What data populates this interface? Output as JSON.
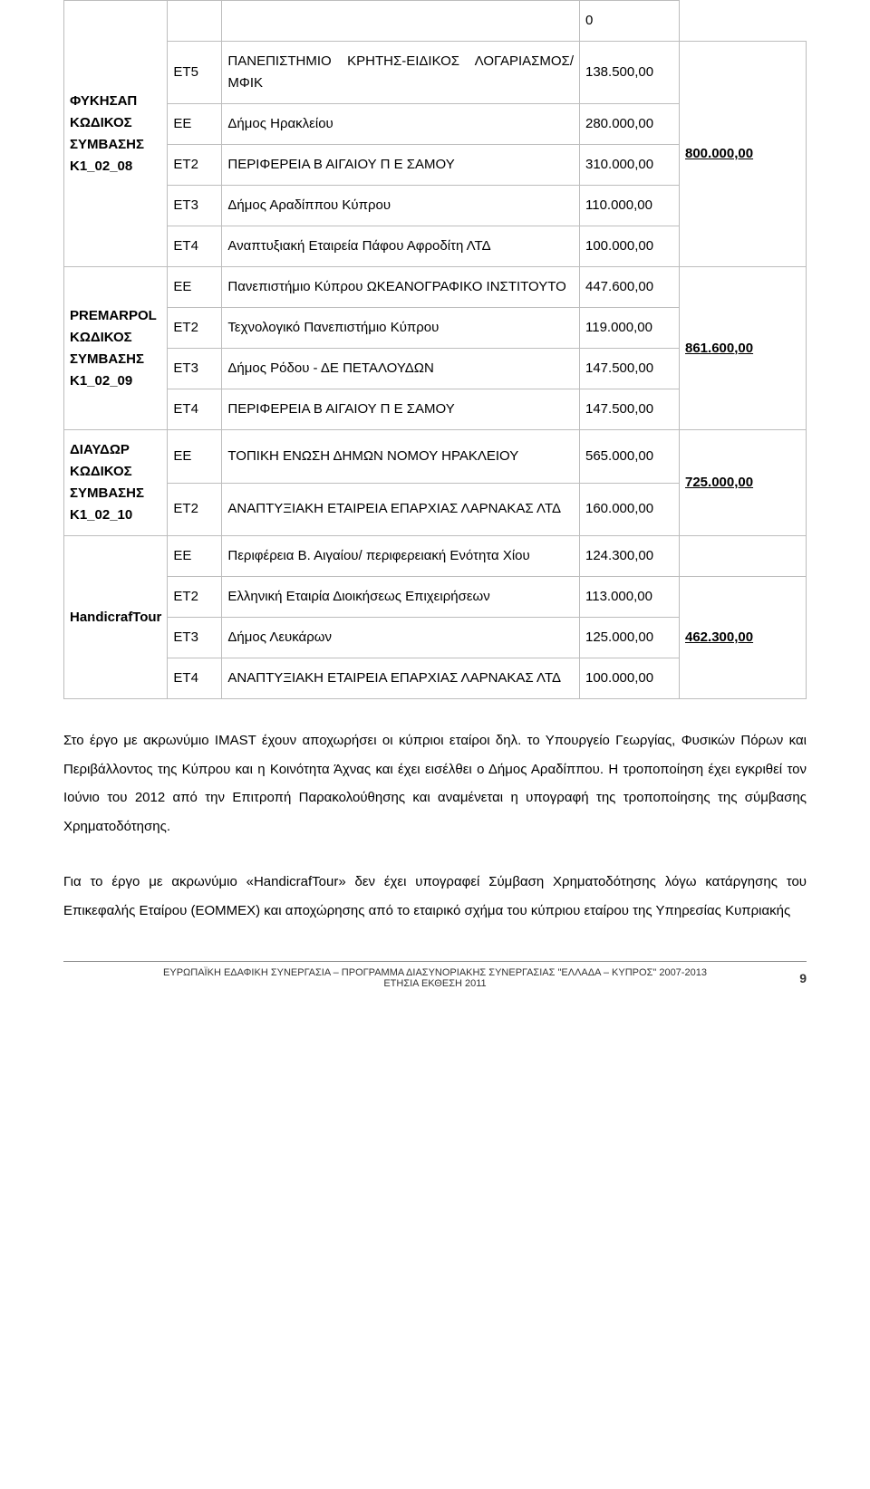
{
  "projects": [
    {
      "name_lines": [
        "ΦΥΚΗΣΑΠ",
        "ΚΩΔΙΚΟΣ",
        "ΣΥΜΒΑΣΗΣ",
        "Κ1_02_08"
      ],
      "total": "800.000,00",
      "total_row_index": 1,
      "leading_amount": "0",
      "rows": [
        {
          "partner": "ΕΤ5",
          "desc": "ΠΑΝΕΠΙΣΤΗΜΙΟ ΚΡΗΤΗΣ-ΕΙΔΙΚΟΣ ΛΟΓΑΡΙΑΣΜΟΣ/ΜΦΙΚ",
          "amount": "138.500,00"
        },
        {
          "partner": "ΕΕ",
          "desc": "Δήμος Ηρακλείου",
          "amount": "280.000,00"
        },
        {
          "partner": "ΕΤ2",
          "desc": "ΠΕΡΙΦΕΡΕΙΑ Β ΑΙΓΑΙΟΥ Π Ε ΣΑΜΟΥ",
          "amount": "310.000,00"
        },
        {
          "partner": "ΕΤ3",
          "desc": "Δήμος Αραδίππου Κύπρου",
          "amount": "110.000,00"
        },
        {
          "partner": "ΕΤ4",
          "desc": "Αναπτυξιακή Εταιρεία Πάφου Αφροδίτη ΛΤΔ",
          "amount": "100.000,00"
        }
      ]
    },
    {
      "name_lines": [
        "PREMARPOL",
        "ΚΩΔΙΚΟΣ",
        "ΣΥΜΒΑΣΗΣ",
        "Κ1_02_09"
      ],
      "total": "861.600,00",
      "total_row_index": 0,
      "rows": [
        {
          "partner": "ΕΕ",
          "desc": "Πανεπιστήμιο Κύπρου ΩΚΕΑΝΟΓΡΑΦΙΚΟ ΙΝΣΤΙΤΟΥΤΟ",
          "amount": "447.600,00"
        },
        {
          "partner": "ΕΤ2",
          "desc": "Τεχνολογικό Πανεπιστήμιο Κύπρου",
          "amount": "119.000,00"
        },
        {
          "partner": "ΕΤ3",
          "desc": "Δήμος Ρόδου - ΔΕ ΠΕΤΑΛΟΥΔΩΝ",
          "amount": "147.500,00"
        },
        {
          "partner": "ΕΤ4",
          "desc": "ΠΕΡΙΦΕΡΕΙΑ Β ΑΙΓΑΙΟΥ Π Ε ΣΑΜΟΥ",
          "amount": "147.500,00"
        }
      ]
    },
    {
      "name_lines": [
        "ΔΙΑΥΔΩΡ",
        "ΚΩΔΙΚΟΣ",
        "ΣΥΜΒΑΣΗΣ",
        "Κ1_02_10"
      ],
      "total": "725.000,00",
      "total_row_index": 0,
      "rows": [
        {
          "partner": "ΕΕ",
          "desc": "ΤΟΠΙΚΗ ΕΝΩΣΗ ΔΗΜΩΝ ΝΟΜΟΥ ΗΡΑΚΛΕΙΟΥ",
          "amount": "565.000,00"
        },
        {
          "partner": "ΕΤ2",
          "desc": "ΑΝΑΠΤΥΞΙΑΚΗ ΕΤΑΙΡΕΙΑ ΕΠΑΡΧΙΑΣ ΛΑΡΝΑΚΑΣ ΛΤΔ",
          "amount": "160.000,00"
        }
      ]
    },
    {
      "name_lines": [
        "HandicrafTour"
      ],
      "total": "462.300,00",
      "total_row_index": 1,
      "rows": [
        {
          "partner": "ΕΕ",
          "desc": "Περιφέρεια Β. Αιγαίου/ περιφερειακή Ενότητα Χίου",
          "amount": "124.300,00"
        },
        {
          "partner": "ΕΤ2",
          "desc": "Ελληνική Εταιρία Διοικήσεως Επιχειρήσεων",
          "amount": "113.000,00"
        },
        {
          "partner": "ΕΤ3",
          "desc": "Δήμος Λευκάρων",
          "amount": "125.000,00"
        },
        {
          "partner": "ΕΤ4",
          "desc": "ΑΝΑΠΤΥΞΙΑΚΗ ΕΤΑΙΡΕΙΑ ΕΠΑΡΧΙΑΣ ΛΑΡΝΑΚΑΣ ΛΤΔ",
          "amount": "100.000,00"
        }
      ]
    }
  ],
  "paragraphs": [
    "Στο έργο με ακρωνύμιο IMAST έχουν αποχωρήσει οι κύπριοι εταίροι δηλ. το Υπουργείο Γεωργίας, Φυσικών Πόρων και Περιβάλλοντος της Κύπρου και η Κοινότητα Άχνας και έχει εισέλθει ο Δήμος Αραδίππου. Η τροποποίηση έχει εγκριθεί τον Ιούνιο του 2012 από την Επιτροπή Παρακολούθησης και αναμένεται η υπογραφή της τροποποίησης της σύμβασης Χρηματοδότησης.",
    "Για το έργο με ακρωνύμιο «HandicrafTour» δεν έχει υπογραφεί Σύμβαση Χρηματοδότησης λόγω κατάργησης του Επικεφαλής Εταίρου (ΕΟΜΜΕΧ) και αποχώρησης από το εταιρικό σχήμα του κύπριου εταίρου της Υπηρεσίας Κυπριακής"
  ],
  "footer": {
    "line1": "ΕΥΡΩΠΑΪΚΗ ΕΔΑΦΙΚΗ ΣΥΝΕΡΓΑΣΙΑ – ΠΡΟΓΡΑΜΜΑ ΔΙΑΣΥΝΟΡΙΑΚΗΣ ΣΥΝΕΡΓΑΣΙΑΣ  \"ΕΛΛΑΔΑ – ΚΥΠΡΟΣ\" 2007-2013",
    "line2": "ΕΤΗΣΙΑ ΕΚΘΕΣΗ 2011",
    "page_number": "9"
  },
  "colors": {
    "border": "#bdbdbd",
    "text": "#000000"
  }
}
